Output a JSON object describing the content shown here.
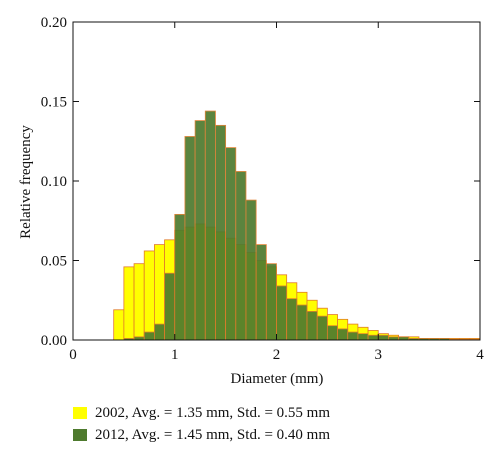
{
  "chart_data": {
    "type": "bar",
    "title": "",
    "xlabel": "Diameter (mm)",
    "ylabel": "Relative frequency",
    "xlim": [
      0,
      4
    ],
    "ylim": [
      0,
      0.2
    ],
    "xticks": [
      "0",
      "1",
      "2",
      "3",
      "4"
    ],
    "yticks": [
      "0.00",
      "0.05",
      "0.10",
      "0.15",
      "0.20"
    ],
    "bin_width": 0.1,
    "legend_position": "bottom",
    "series": [
      {
        "name": "2002, Avg. = 1.35 mm, Std. = 0.55 mm",
        "color": "#ffff00",
        "bin_starts": [
          0.4,
          0.5,
          0.6,
          0.7,
          0.8,
          0.9,
          1.0,
          1.1,
          1.2,
          1.3,
          1.4,
          1.5,
          1.6,
          1.7,
          1.8,
          1.9,
          2.0,
          2.1,
          2.2,
          2.3,
          2.4,
          2.5,
          2.6,
          2.7,
          2.8,
          2.9,
          3.0,
          3.1,
          3.2,
          3.3,
          3.4,
          3.5,
          3.6,
          3.7,
          3.8,
          3.9
        ],
        "values": [
          0.019,
          0.046,
          0.048,
          0.056,
          0.06,
          0.063,
          0.069,
          0.071,
          0.073,
          0.071,
          0.068,
          0.064,
          0.06,
          0.055,
          0.05,
          0.046,
          0.041,
          0.036,
          0.03,
          0.025,
          0.02,
          0.016,
          0.013,
          0.01,
          0.008,
          0.006,
          0.004,
          0.003,
          0.002,
          0.002,
          0.001,
          0.001,
          0.001,
          0.001,
          0.001,
          0.001
        ]
      },
      {
        "name": "2012, Avg. = 1.45 mm, Std. = 0.40 mm",
        "color": "#4e7a2e",
        "bin_starts": [
          0.5,
          0.6,
          0.7,
          0.8,
          0.9,
          1.0,
          1.1,
          1.2,
          1.3,
          1.4,
          1.5,
          1.6,
          1.7,
          1.8,
          1.9,
          2.0,
          2.1,
          2.2,
          2.3,
          2.4,
          2.5,
          2.6,
          2.7,
          2.8,
          2.9,
          3.0,
          3.1,
          3.2,
          3.3,
          3.4,
          3.5,
          3.6,
          3.7,
          3.8,
          3.9
        ],
        "values": [
          0.001,
          0.002,
          0.005,
          0.01,
          0.042,
          0.079,
          0.128,
          0.138,
          0.144,
          0.135,
          0.121,
          0.106,
          0.088,
          0.06,
          0.048,
          0.034,
          0.026,
          0.022,
          0.018,
          0.015,
          0.009,
          0.007,
          0.005,
          0.004,
          0.003,
          0.003,
          0.002,
          0.002,
          0.001,
          0.001,
          0.001,
          0.001,
          0.0005,
          0.0005,
          0.0005
        ]
      }
    ]
  }
}
